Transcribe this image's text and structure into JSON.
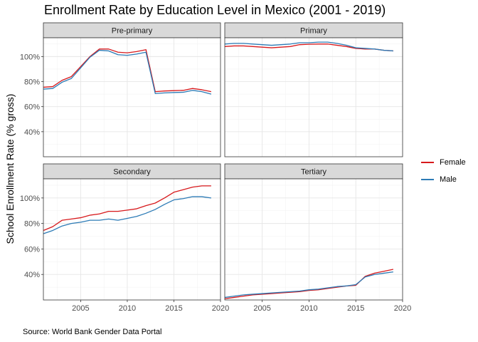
{
  "title": "Enrollment Rate by Education Level in Mexico (2001 - 2019)",
  "ylabel": "School Enrollment Rate (% gross)",
  "caption": "Source: World Bank Gender Data Portal",
  "legend": [
    {
      "label": "Female",
      "color": "#d7191c"
    },
    {
      "label": "Male",
      "color": "#2c7bb6"
    }
  ],
  "chart_data": {
    "type": "line",
    "facets": [
      "Pre-primary",
      "Primary",
      "Secondary",
      "Tertiary"
    ],
    "x_axis": {
      "range": [
        2001,
        2020
      ],
      "ticks": [
        2005,
        2010,
        2015,
        2020
      ],
      "tick_labels": [
        "2005",
        "2010",
        "2015",
        "2020"
      ]
    },
    "y_axis": {
      "range": [
        20,
        115
      ],
      "ticks": [
        40,
        60,
        80,
        100
      ],
      "tick_labels": [
        "40%",
        "60%",
        "80%",
        "100%"
      ]
    },
    "x": [
      2001,
      2002,
      2003,
      2004,
      2005,
      2006,
      2007,
      2008,
      2009,
      2010,
      2011,
      2012,
      2013,
      2014,
      2015,
      2016,
      2017,
      2018,
      2019
    ],
    "panels": [
      {
        "name": "Pre-primary",
        "series": [
          {
            "name": "Female",
            "values": [
              75.5,
              76,
              81,
              84,
              92,
              100,
              106,
              106,
              103.5,
              103,
              104,
              105.5,
              72,
              72.5,
              72.8,
              73,
              74.5,
              73.5,
              72
            ]
          },
          {
            "name": "Male",
            "values": [
              74,
              74.5,
              79.5,
              82.5,
              91,
              99.5,
              105,
              104.5,
              101.5,
              101,
              102,
              103.5,
              70.5,
              71,
              71.3,
              71.5,
              73,
              72,
              70
            ]
          }
        ]
      },
      {
        "name": "Primary",
        "series": [
          {
            "name": "Female",
            "values": [
              108,
              108.5,
              108.5,
              108,
              107.5,
              107,
              107.5,
              108,
              109.5,
              109.8,
              110,
              110,
              109,
              108,
              106.5,
              106,
              106,
              105,
              104.5
            ]
          },
          {
            "name": "Male",
            "values": [
              110,
              110.5,
              110.5,
              110,
              109.5,
              109,
              109.5,
              110,
              111,
              111,
              111.5,
              111.5,
              110.5,
              109,
              107,
              106.5,
              106,
              105,
              104.5
            ]
          }
        ]
      },
      {
        "name": "Secondary",
        "series": [
          {
            "name": "Female",
            "values": [
              74.5,
              77.5,
              82.5,
              83.5,
              84.5,
              86.5,
              87.5,
              89.5,
              89.5,
              90.5,
              91.5,
              94,
              96,
              100,
              104.5,
              106.5,
              108.5,
              109.5,
              109.5
            ]
          },
          {
            "name": "Male",
            "values": [
              72,
              74.5,
              78,
              80,
              81,
              82.5,
              82.5,
              83.5,
              82.5,
              84,
              85.5,
              88,
              91,
              95,
              98.5,
              99.5,
              101,
              101,
              100
            ]
          }
        ]
      },
      {
        "name": "Tertiary",
        "series": [
          {
            "name": "Female",
            "values": [
              21,
              22,
              23,
              24,
              24.5,
              25,
              25.5,
              26,
              26.5,
              27.5,
              28,
              29,
              30,
              31,
              31.5,
              38.5,
              41,
              42.5,
              44
            ]
          },
          {
            "name": "Male",
            "values": [
              22,
              23,
              24,
              24.5,
              25,
              25.5,
              26,
              26.5,
              27,
              28,
              28.5,
              29.5,
              30.5,
              31,
              32,
              38,
              40,
              41,
              42
            ]
          }
        ]
      }
    ],
    "grid": true,
    "legend_position": "right"
  }
}
